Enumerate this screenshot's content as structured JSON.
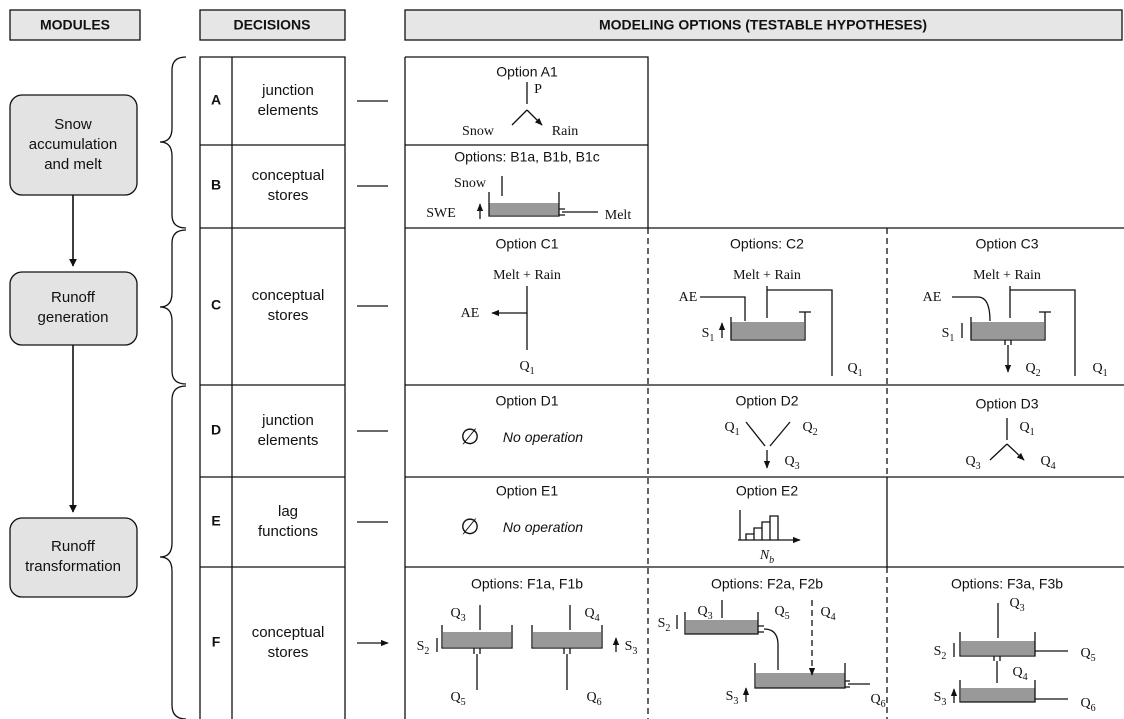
{
  "headers": {
    "modules": "MODULES",
    "decisions": "DECISIONS",
    "options": "MODELING OPTIONS (TESTABLE HYPOTHESES)"
  },
  "modules": [
    [
      "Snow",
      "accumulation",
      "and melt"
    ],
    [
      "Runoff",
      "generation"
    ],
    [
      "Runoff",
      "transformation"
    ]
  ],
  "decisions": [
    {
      "letter": "A",
      "lines": [
        "junction",
        "elements"
      ]
    },
    {
      "letter": "B",
      "lines": [
        "conceptual",
        "stores"
      ]
    },
    {
      "letter": "C",
      "lines": [
        "conceptual",
        "stores"
      ]
    },
    {
      "letter": "D",
      "lines": [
        "junction",
        "elements"
      ]
    },
    {
      "letter": "E",
      "lines": [
        "lag",
        "functions"
      ]
    },
    {
      "letter": "F",
      "lines": [
        "conceptual",
        "stores"
      ]
    }
  ],
  "options": [
    {
      "title": "Option A1",
      "labels": [
        {
          "text": "P"
        },
        {
          "text": "Snow"
        },
        {
          "text": "Rain"
        }
      ]
    },
    {
      "title": "Options: B1a, B1b, B1c",
      "labels": [
        {
          "text": "Snow"
        },
        {
          "text": "SWE"
        },
        {
          "text": "Melt"
        }
      ]
    },
    {
      "title": "Option C1",
      "labels": [
        {
          "text": "Melt + Rain"
        },
        {
          "text": "AE"
        },
        {
          "text": "Q",
          "sub": "1"
        }
      ]
    },
    {
      "title": "Options: C2",
      "labels": [
        {
          "text": "Melt + Rain"
        },
        {
          "text": "AE"
        },
        {
          "text": "S",
          "sub": "1"
        },
        {
          "text": "Q",
          "sub": "1"
        }
      ]
    },
    {
      "title": "Option C3",
      "labels": [
        {
          "text": "Melt + Rain"
        },
        {
          "text": "AE"
        },
        {
          "text": "S",
          "sub": "1"
        },
        {
          "text": "Q",
          "sub": "2"
        },
        {
          "text": "Q",
          "sub": "1"
        }
      ]
    },
    {
      "title": "Option D1",
      "labels": [
        {
          "text": "∅"
        },
        {
          "text": "No operation"
        }
      ]
    },
    {
      "title": "Option D2",
      "labels": [
        {
          "text": "Q",
          "sub": "1"
        },
        {
          "text": "Q",
          "sub": "2"
        },
        {
          "text": "Q",
          "sub": "3"
        }
      ]
    },
    {
      "title": "Option D3",
      "labels": [
        {
          "text": "Q",
          "sub": "1"
        },
        {
          "text": "Q",
          "sub": "3"
        },
        {
          "text": "Q",
          "sub": "4"
        }
      ]
    },
    {
      "title": "Option E1",
      "labels": [
        {
          "text": "∅"
        },
        {
          "text": "No operation"
        }
      ]
    },
    {
      "title": "Option E2",
      "labels": [
        {
          "text": "N",
          "sub": "b"
        }
      ]
    },
    {
      "title": "Options: F1a, F1b",
      "labels": [
        {
          "text": "Q",
          "sub": "3"
        },
        {
          "text": "Q",
          "sub": "4"
        },
        {
          "text": "S",
          "sub": "2"
        },
        {
          "text": "S",
          "sub": "3"
        },
        {
          "text": "Q",
          "sub": "5"
        },
        {
          "text": "Q",
          "sub": "6"
        }
      ]
    },
    {
      "title": "Options: F2a, F2b",
      "labels": [
        {
          "text": "Q",
          "sub": "3"
        },
        {
          "text": "Q",
          "sub": "5"
        },
        {
          "text": "Q",
          "sub": "4"
        },
        {
          "text": "S",
          "sub": "2"
        },
        {
          "text": "S",
          "sub": "3"
        },
        {
          "text": "Q",
          "sub": "6"
        }
      ]
    },
    {
      "title": "Options: F3a, F3b",
      "labels": [
        {
          "text": "Q",
          "sub": "3"
        },
        {
          "text": "S",
          "sub": "2"
        },
        {
          "text": "Q",
          "sub": "5"
        },
        {
          "text": "Q",
          "sub": "4"
        },
        {
          "text": "S",
          "sub": "3"
        },
        {
          "text": "Q",
          "sub": "6"
        }
      ]
    }
  ]
}
